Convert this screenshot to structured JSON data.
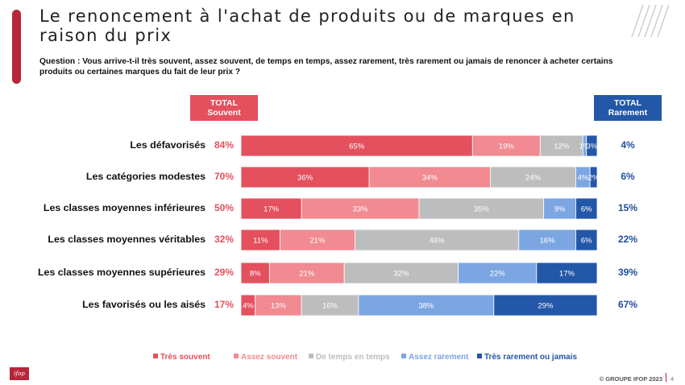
{
  "title": "Le renoncement à l'achat de produits ou de marques en raison du prix",
  "question": "Question : Vous arrive-t-il très souvent, assez souvent, de temps en temps, assez rarement, très rarement ou jamais de renoncer à acheter certains produits ou certaines marques du fait de leur prix ?",
  "header": {
    "total_left": [
      "TOTAL",
      "Souvent"
    ],
    "total_right": [
      "TOTAL",
      "Rarement"
    ]
  },
  "footer": {
    "copyright": "© GROUPE IFOP 2023",
    "page": "4",
    "logo": "ifop"
  },
  "colors": {
    "tres_souvent": "#e4505d",
    "assez_souvent": "#f18a91",
    "de_temps": "#bdbdbd",
    "assez_rarement": "#7ca6e2",
    "tres_rarement": "#2357a8",
    "accent": "#b7263a"
  },
  "chart_data": {
    "type": "bar",
    "orientation": "horizontal",
    "stacked": true,
    "categories": [
      "Les défavorisés",
      "Les catégories modestes",
      "Les classes moyennes inférieures",
      "Les classes moyennes véritables",
      "Les classes moyennes supérieures",
      "Les favorisés ou les aisés"
    ],
    "series": [
      {
        "name": "Très souvent",
        "values": [
          65,
          36,
          17,
          11,
          8,
          4
        ],
        "labels": [
          "65%",
          "36%",
          "17%",
          "11%",
          "8%",
          "4%"
        ]
      },
      {
        "name": "Assez souvent",
        "values": [
          19,
          34,
          33,
          21,
          21,
          13
        ],
        "labels": [
          "19%",
          "34%",
          "33%",
          "21%",
          "21%",
          "13%"
        ]
      },
      {
        "name": "De temps en temps",
        "values": [
          12,
          24,
          35,
          46,
          32,
          16
        ],
        "labels": [
          "12%",
          "24%",
          "35%",
          "46%",
          "32%",
          "16%"
        ]
      },
      {
        "name": "Assez rarement",
        "values": [
          1,
          4,
          9,
          16,
          22,
          38
        ],
        "labels": [
          "1%",
          "4%",
          "9%",
          "16%",
          "22%",
          "38%"
        ]
      },
      {
        "name": "Très rarement ou jamais",
        "values": [
          3,
          2,
          6,
          6,
          17,
          29
        ],
        "labels": [
          "3%",
          "2%",
          "6%",
          "6%",
          "17%",
          "29%"
        ]
      }
    ],
    "total_souvent": [
      "84%",
      "70%",
      "50%",
      "32%",
      "29%",
      "17%"
    ],
    "total_rarement": [
      "4%",
      "6%",
      "15%",
      "22%",
      "39%",
      "67%"
    ],
    "xlim": [
      0,
      100
    ],
    "grid": false,
    "legend": "bottom"
  }
}
